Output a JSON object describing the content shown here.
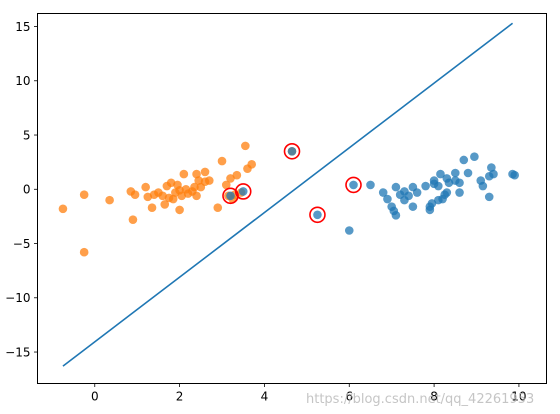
{
  "chart_data": {
    "type": "scatter",
    "title": "",
    "xlabel": "",
    "ylabel": "",
    "xlim": [
      -1.35,
      10.65
    ],
    "ylim": [
      -17.9,
      16.2
    ],
    "xticks": [
      0,
      2,
      4,
      6,
      8,
      10
    ],
    "yticks": [
      -15,
      -10,
      -5,
      0,
      5,
      10,
      15
    ],
    "grid": false,
    "series": [
      {
        "color": "#1f77b4",
        "points": [
          [
            6.0,
            -3.8
          ],
          [
            6.5,
            0.4
          ],
          [
            6.8,
            -0.3
          ],
          [
            6.9,
            -0.9
          ],
          [
            7.0,
            -1.6
          ],
          [
            7.05,
            -2.0
          ],
          [
            7.1,
            0.2
          ],
          [
            7.1,
            -2.4
          ],
          [
            7.2,
            -0.5
          ],
          [
            7.3,
            -0.2
          ],
          [
            7.3,
            -1.0
          ],
          [
            7.4,
            -0.6
          ],
          [
            7.5,
            0.2
          ],
          [
            7.5,
            -1.6
          ],
          [
            7.6,
            -0.3
          ],
          [
            7.8,
            0.3
          ],
          [
            7.9,
            -1.6
          ],
          [
            7.9,
            -1.9
          ],
          [
            7.95,
            -1.3
          ],
          [
            8.0,
            0.5
          ],
          [
            8.0,
            0.8
          ],
          [
            8.1,
            -1.0
          ],
          [
            8.1,
            0.3
          ],
          [
            8.15,
            1.4
          ],
          [
            8.2,
            -0.9
          ],
          [
            8.25,
            -0.5
          ],
          [
            8.3,
            1.0
          ],
          [
            8.3,
            -0.3
          ],
          [
            8.35,
            0.6
          ],
          [
            8.5,
            0.8
          ],
          [
            8.5,
            1.5
          ],
          [
            8.6,
            -0.3
          ],
          [
            8.6,
            0.6
          ],
          [
            8.7,
            2.7
          ],
          [
            8.8,
            1.5
          ],
          [
            8.95,
            3.0
          ],
          [
            9.1,
            0.8
          ],
          [
            9.15,
            0.3
          ],
          [
            9.3,
            1.2
          ],
          [
            9.3,
            -0.7
          ],
          [
            9.35,
            2.0
          ],
          [
            9.4,
            1.4
          ],
          [
            9.85,
            1.4
          ],
          [
            9.9,
            1.3
          ]
        ]
      },
      {
        "color": "#ff7f0e",
        "points": [
          [
            -0.75,
            -1.8
          ],
          [
            -0.25,
            -0.5
          ],
          [
            -0.25,
            -5.8
          ],
          [
            0.35,
            -1.0
          ],
          [
            0.85,
            -0.2
          ],
          [
            0.9,
            -2.8
          ],
          [
            0.95,
            -0.5
          ],
          [
            1.2,
            0.2
          ],
          [
            1.25,
            -0.7
          ],
          [
            1.35,
            -1.7
          ],
          [
            1.4,
            -0.5
          ],
          [
            1.5,
            -0.3
          ],
          [
            1.6,
            -0.6
          ],
          [
            1.65,
            -1.4
          ],
          [
            1.7,
            0.3
          ],
          [
            1.75,
            -0.8
          ],
          [
            1.8,
            0.6
          ],
          [
            1.85,
            -0.9
          ],
          [
            1.9,
            -0.3
          ],
          [
            1.95,
            0.4
          ],
          [
            2.0,
            -0.1
          ],
          [
            2.0,
            -1.9
          ],
          [
            2.05,
            -0.6
          ],
          [
            2.1,
            1.4
          ],
          [
            2.15,
            0.0
          ],
          [
            2.2,
            -0.4
          ],
          [
            2.3,
            -0.2
          ],
          [
            2.35,
            0.2
          ],
          [
            2.4,
            -0.6
          ],
          [
            2.4,
            1.4
          ],
          [
            2.45,
            0.8
          ],
          [
            2.5,
            0.2
          ],
          [
            2.6,
            1.6
          ],
          [
            2.6,
            0.7
          ],
          [
            2.7,
            0.8
          ],
          [
            2.9,
            -1.7
          ],
          [
            3.0,
            2.6
          ],
          [
            3.1,
            0.4
          ],
          [
            3.15,
            -0.6
          ],
          [
            3.2,
            1.0
          ],
          [
            3.25,
            -0.9
          ],
          [
            3.3,
            -0.5
          ],
          [
            3.35,
            1.3
          ],
          [
            3.45,
            -0.3
          ],
          [
            3.55,
            4.0
          ],
          [
            3.6,
            1.9
          ],
          [
            3.7,
            2.3
          ],
          [
            4.65,
            3.5
          ]
        ]
      }
    ],
    "circled_points": [
      [
        3.2,
        -0.6
      ],
      [
        3.5,
        -0.2
      ],
      [
        4.65,
        3.5
      ],
      [
        5.25,
        -2.35
      ],
      [
        6.1,
        0.4
      ]
    ],
    "circle_color": "#ff0000",
    "line": {
      "color": "#1f77b4",
      "x": [
        -0.75,
        9.85
      ],
      "y": [
        -16.3,
        15.3
      ]
    }
  },
  "watermark": "https://blog.csdn.net/qq_42261953"
}
